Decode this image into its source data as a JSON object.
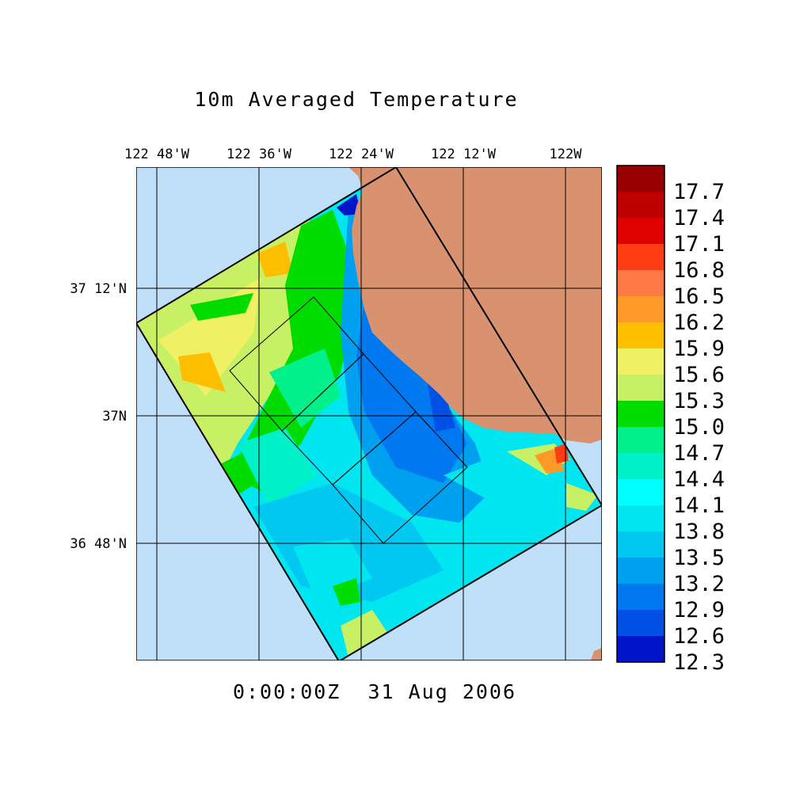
{
  "title": "10m Averaged Temperature",
  "timestamp": "0:00:00Z  31 Aug 2006",
  "lon_labels": [
    "122 48'W",
    "122 36'W",
    "122 24'W",
    "122 12'W",
    "122W"
  ],
  "lat_labels": [
    "37 12'N",
    "37N",
    "36 48'N"
  ],
  "colorbar": {
    "labels": [
      "17.7",
      "17.4",
      "17.1",
      "16.8",
      "16.5",
      "16.2",
      "15.9",
      "15.6",
      "15.3",
      "15.0",
      "14.7",
      "14.4",
      "14.1",
      "13.8",
      "13.5",
      "13.2",
      "12.9",
      "12.6",
      "12.3"
    ],
    "colors": [
      "#960000",
      "#be0000",
      "#e10000",
      "#ff3c14",
      "#ff7846",
      "#ff9a28",
      "#ffbe00",
      "#f0f064",
      "#c8f064",
      "#00dc00",
      "#00f08c",
      "#00f0c8",
      "#00ffff",
      "#00e6f0",
      "#00c8f0",
      "#00a0f0",
      "#0078f0",
      "#0050e6",
      "#0014c8"
    ]
  },
  "colors": {
    "ocean": "#c0dff8",
    "land": "#d9926f"
  }
}
